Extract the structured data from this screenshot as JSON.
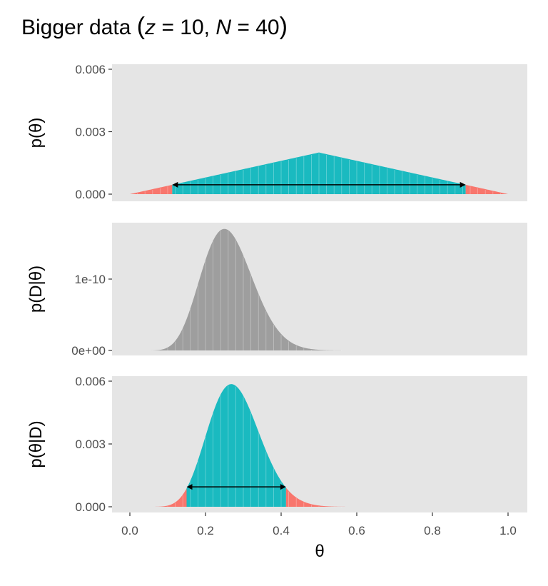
{
  "chart_data": {
    "type": "area",
    "title": {
      "prefix": "Bigger data ",
      "z_label": "z",
      "z_eq": " = 10, ",
      "n_label": "N",
      "n_eq": " = 40"
    },
    "params": {
      "z": 10,
      "N": 40,
      "grid_step": 0.001,
      "prior_shape": "triangular, peak at 0.5",
      "hdi_mass": 0.95
    },
    "xlabel": "θ",
    "xlim": [
      0,
      1
    ],
    "x_ticks": [
      "0.0",
      "0.2",
      "0.4",
      "0.6",
      "0.8",
      "1.0"
    ],
    "x_tick_values": [
      0,
      0.2,
      0.4,
      0.6,
      0.8,
      1.0
    ],
    "grid": false,
    "colors": {
      "hdi": "#1ABAC0",
      "tail": "#F8766D",
      "likelihood": "#9E9E9E",
      "panel_bg": "#E5E5E5"
    },
    "panels": [
      {
        "name": "prior",
        "ylabel": "p(θ)",
        "ylim": [
          0,
          0.006
        ],
        "y_ticks": [
          "0.000",
          "0.003",
          "0.006"
        ],
        "y_tick_values": [
          0,
          0.003,
          0.006
        ],
        "peak_value": 0.002,
        "hdi": [
          0.112,
          0.888
        ]
      },
      {
        "name": "likelihood",
        "ylabel": "p(D|θ)",
        "ylim": [
          0,
          1.7e-10
        ],
        "y_ticks": [
          "0e+00",
          "1e-10"
        ],
        "y_tick_values": [
          0,
          1e-10
        ],
        "peak_value": 1.71e-10
      },
      {
        "name": "posterior",
        "ylabel": "p(θ|D)",
        "ylim": [
          0,
          0.006
        ],
        "y_ticks": [
          "0.000",
          "0.003",
          "0.006"
        ],
        "y_tick_values": [
          0,
          0.003,
          0.006
        ],
        "peak_value": 0.0058,
        "hdi": [
          0.15,
          0.413
        ]
      }
    ]
  }
}
